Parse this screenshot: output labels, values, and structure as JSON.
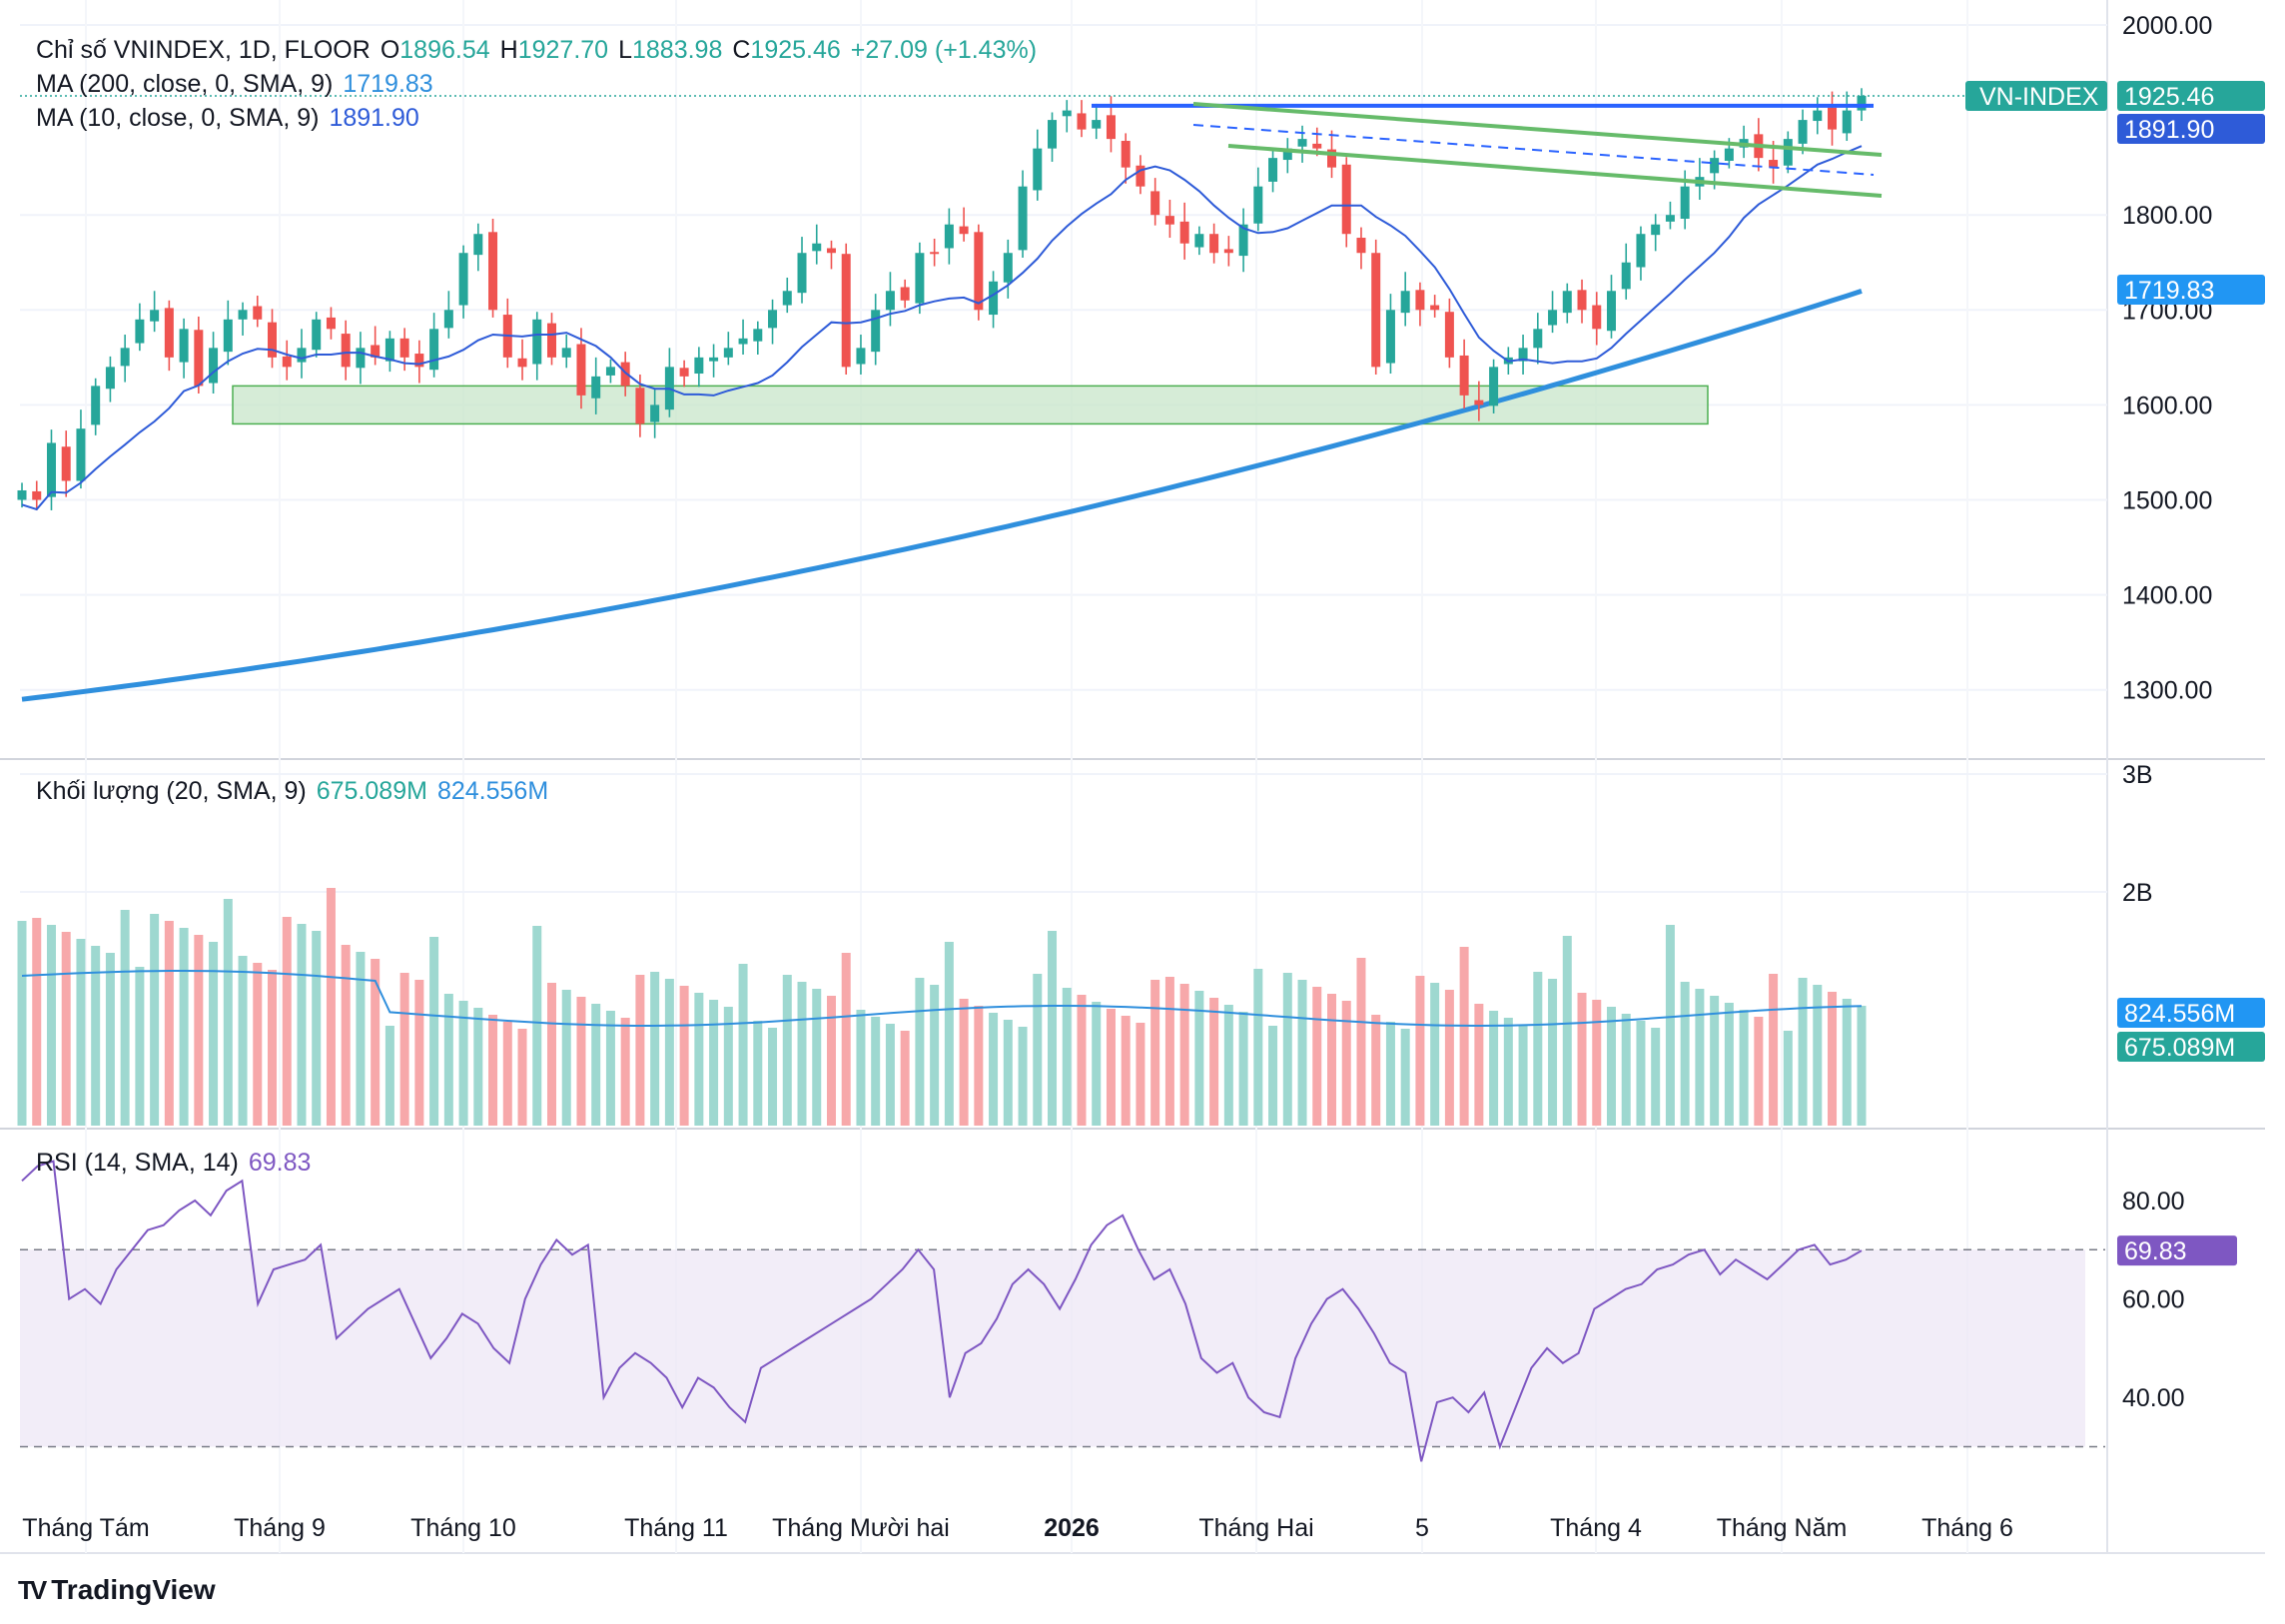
{
  "header": {
    "title": "Chỉ số VNINDEX, 1D, FLOOR",
    "open_label": "O",
    "open": "1896.54",
    "high_label": "H",
    "high": "1927.70",
    "low_label": "L",
    "low": "1883.98",
    "close_label": "C",
    "close": "1925.46",
    "change": "+27.09 (+1.43%)",
    "ma200_label": "MA (200, close, 0, SMA, 9)",
    "ma200_value": "1719.83",
    "ma10_label": "MA (10, close, 0, SMA, 9)",
    "ma10_value": "1891.90"
  },
  "volume_legend": {
    "label": "Khối lượng (20, SMA, 9)",
    "v1": "675.089M",
    "v2": "824.556M"
  },
  "rsi_legend": {
    "label": "RSI (14, SMA, 14)",
    "value": "69.83"
  },
  "branding": {
    "name": "TradingView"
  },
  "colors": {
    "up": "#26a69a",
    "down": "#ef5350",
    "ma200": "#2f8fdd",
    "ma10": "#2e5bd8",
    "rsi": "#7e57c2",
    "resistance": "#2962ff",
    "channel": "#66bb6a",
    "zone": "#c8e6c9"
  },
  "chart_data": [
    {
      "type": "candlestick",
      "title": "Chỉ số VNINDEX, 1D, FLOOR",
      "ylim": [
        1250,
        2020
      ],
      "yticks": [
        "2000.00",
        "1800.00",
        "1700.00",
        "1600.00",
        "1500.00",
        "1400.00",
        "1300.00"
      ],
      "xticks": [
        "Tháng Tám",
        "Tháng 9",
        "Tháng 10",
        "Tháng 11",
        "Tháng Mười hai",
        "2026",
        "Tháng Hai",
        "5",
        "Tháng 4",
        "Tháng Năm",
        "Tháng 6"
      ],
      "price_labels": [
        {
          "text": "VN-INDEX",
          "value": "1925.46"
        },
        {
          "text": "",
          "value": "1891.90"
        },
        {
          "text": "",
          "value": "1719.83"
        }
      ],
      "close_path": [
        1510,
        1500,
        1560,
        1520,
        1575,
        1620,
        1640,
        1660,
        1690,
        1700,
        1650,
        1680,
        1620,
        1660,
        1690,
        1700,
        1690,
        1650,
        1640,
        1660,
        1690,
        1680,
        1640,
        1660,
        1650,
        1670,
        1650,
        1640,
        1680,
        1700,
        1760,
        1780,
        1700,
        1650,
        1640,
        1690,
        1650,
        1660,
        1610,
        1630,
        1640,
        1620,
        1580,
        1600,
        1640,
        1630,
        1650,
        1650,
        1660,
        1670,
        1680,
        1700,
        1720,
        1760,
        1770,
        1760,
        1640,
        1660,
        1700,
        1720,
        1710,
        1760,
        1760,
        1790,
        1780,
        1700,
        1730,
        1760,
        1830,
        1870,
        1900,
        1910,
        1890,
        1900,
        1880,
        1850,
        1830,
        1800,
        1790,
        1770,
        1780,
        1760,
        1760,
        1790,
        1830,
        1860,
        1870,
        1880,
        1870,
        1850,
        1780,
        1760,
        1640,
        1700,
        1720,
        1700,
        1700,
        1650,
        1610,
        1600,
        1640,
        1650,
        1660,
        1680,
        1700,
        1720,
        1700,
        1680,
        1720,
        1750,
        1780,
        1790,
        1800,
        1830,
        1840,
        1860,
        1870,
        1880,
        1860,
        1850,
        1880,
        1900,
        1910,
        1890,
        1910,
        1925.46
      ],
      "ma10_final": 1891.9,
      "ma200_range": [
        1290,
        1719.83
      ],
      "resistance": 1915,
      "support_zone": [
        1580,
        1620
      ]
    },
    {
      "type": "bar",
      "title": "Khối lượng (20, SMA, 9)",
      "yticks": [
        "3B",
        "2B"
      ],
      "ylim": [
        0,
        3000
      ],
      "latest_volume": "675.089M",
      "sma20_latest": "824.556M"
    },
    {
      "type": "line",
      "title": "RSI (14, SMA, 14)",
      "ylim": [
        20,
        90
      ],
      "yticks": [
        "80.00",
        "60.00",
        "40.00"
      ],
      "bands": [
        30,
        70
      ],
      "latest": 69.83,
      "values": [
        84,
        87,
        88,
        60,
        62,
        59,
        66,
        70,
        74,
        75,
        78,
        80,
        77,
        82,
        84,
        59,
        66,
        67,
        68,
        71,
        52,
        55,
        58,
        60,
        62,
        55,
        48,
        52,
        57,
        55,
        50,
        47,
        60,
        67,
        72,
        69,
        71,
        40,
        46,
        49,
        47,
        44,
        38,
        44,
        42,
        38,
        35,
        46,
        48,
        50,
        52,
        54,
        56,
        58,
        60,
        63,
        66,
        70,
        66,
        40,
        49,
        51,
        56,
        63,
        66,
        63,
        58,
        64,
        71,
        75,
        77,
        70,
        64,
        66,
        59,
        48,
        45,
        47,
        40,
        37,
        36,
        48,
        55,
        60,
        62,
        58,
        53,
        47,
        45,
        27,
        39,
        40,
        37,
        41,
        30,
        38,
        46,
        50,
        47,
        49,
        58,
        60,
        62,
        63,
        66,
        67,
        69,
        70,
        65,
        68,
        66,
        64,
        67,
        70,
        71,
        67,
        68,
        69.83
      ]
    }
  ]
}
